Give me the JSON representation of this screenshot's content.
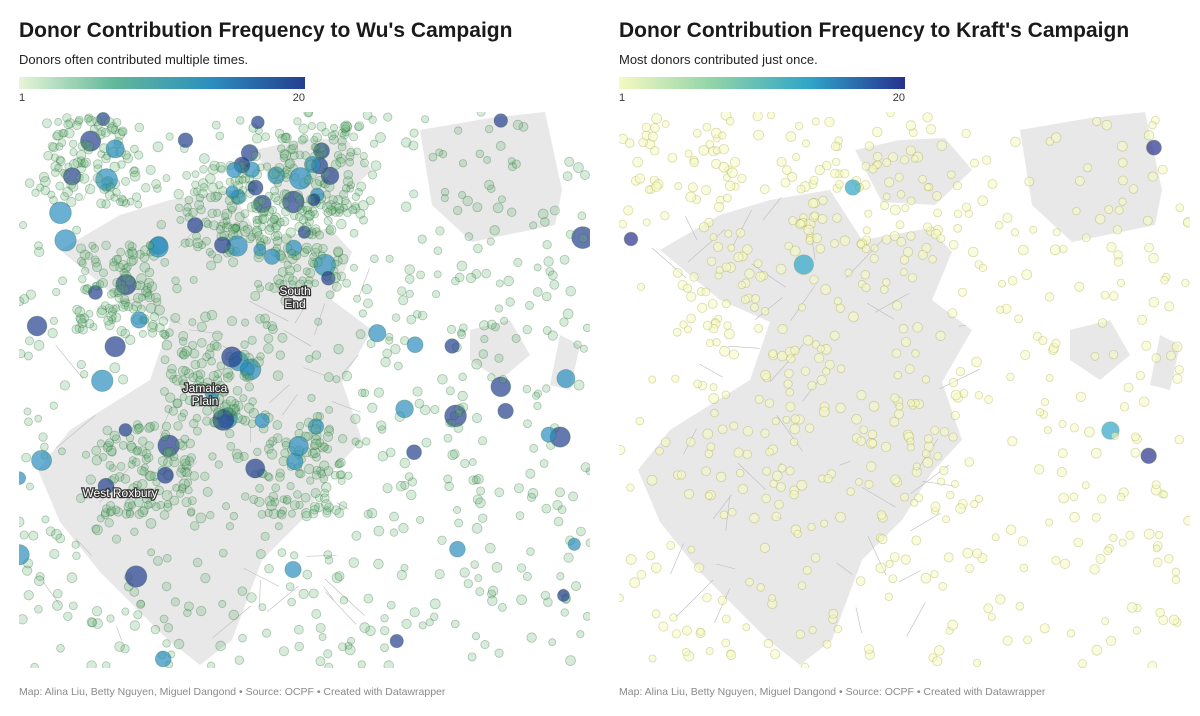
{
  "panels": [
    {
      "title": "Donor Contribution Frequency to Wu's Campaign",
      "subtitle": "Donors often contributed multiple times.",
      "legend": {
        "min": 1,
        "max": 20,
        "colors": [
          "#e8f5d8",
          "#62b89a",
          "#2c8fbf",
          "#253e8f"
        ]
      },
      "places": [
        [
          "South",
          "End"
        ],
        [
          "Jamaica",
          "Plain"
        ],
        [
          "West Roxbury"
        ]
      ],
      "source": "Map: Alina Liu, Betty Nguyen, Miguel Dangond • Source: OCPF • Created with Datawrapper"
    },
    {
      "title": "Donor Contribution Frequency to Kraft's Campaign",
      "subtitle": "Most donors contributed just once.",
      "legend": {
        "min": 1,
        "max": 20,
        "colors": [
          "#f6f9c2",
          "#8fd3a8",
          "#2fa5c9",
          "#26318f"
        ]
      },
      "places": [],
      "source": "Map: Alina Liu, Betty Nguyen, Miguel Dangond • Source: OCPF • Created with Datawrapper"
    }
  ]
}
